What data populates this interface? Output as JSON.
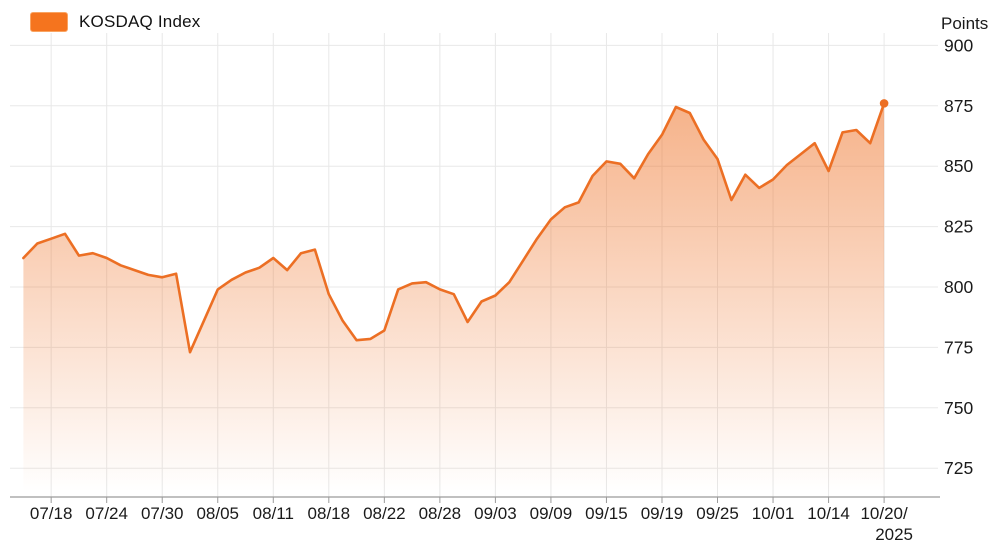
{
  "legend": {
    "label": "KOSDAQ Index",
    "swatch_color": "#F5741E",
    "swatch_border": "#F9A462"
  },
  "y_axis": {
    "title": "Points",
    "ticks": [
      900,
      875,
      850,
      825,
      800,
      775,
      750,
      725
    ]
  },
  "x_axis": {
    "tick_labels": [
      "07/18",
      "07/24",
      "07/30",
      "08/05",
      "08/11",
      "08/18",
      "08/22",
      "08/28",
      "09/03",
      "09/09",
      "09/15",
      "09/19",
      "09/25",
      "10/01",
      "10/14",
      "10/20/"
    ],
    "last_label_second_line": "2025",
    "tick_indices": [
      2,
      6,
      10,
      14,
      18,
      22,
      26,
      30,
      34,
      38,
      42,
      46,
      50,
      54,
      58,
      62
    ]
  },
  "chart_data": {
    "type": "area",
    "title": "KOSDAQ Index",
    "ylabel": "Points",
    "ylim": [
      715,
      905
    ],
    "grid": true,
    "legend_position": "top-left",
    "last_point_marker": true,
    "line_color": "#EC6F24",
    "fill_gradient_top": "rgba(238,112,36,0.55)",
    "fill_gradient_bottom": "rgba(238,112,36,0)",
    "x": [
      "07/16",
      "07/17",
      "07/18",
      "07/21",
      "07/22",
      "07/23",
      "07/24",
      "07/25",
      "07/28",
      "07/29",
      "07/30",
      "07/31",
      "08/01",
      "08/04",
      "08/05",
      "08/06",
      "08/07",
      "08/08",
      "08/11",
      "08/12",
      "08/13",
      "08/14",
      "08/18",
      "08/19",
      "08/20",
      "08/21",
      "08/22",
      "08/25",
      "08/26",
      "08/27",
      "08/28",
      "08/29",
      "09/01",
      "09/02",
      "09/03",
      "09/04",
      "09/05",
      "09/08",
      "09/09",
      "09/10",
      "09/11",
      "09/12",
      "09/15",
      "09/16",
      "09/17",
      "09/18",
      "09/19",
      "09/22",
      "09/23",
      "09/24",
      "09/25",
      "09/26",
      "09/29",
      "09/30",
      "10/01",
      "10/02",
      "10/10",
      "10/13",
      "10/14",
      "10/15",
      "10/16",
      "10/17",
      "10/20"
    ],
    "values": [
      812,
      818,
      820,
      822,
      813,
      814,
      812,
      809,
      807,
      805,
      804,
      805.5,
      773,
      786,
      799,
      803,
      806,
      808,
      812,
      807,
      814,
      815.5,
      797,
      786,
      778,
      778.5,
      782,
      799,
      801.5,
      802,
      799,
      797,
      785.5,
      794,
      796.5,
      802,
      811,
      820,
      828,
      833,
      835,
      846,
      852,
      851,
      845,
      855,
      863,
      874.5,
      872,
      861,
      853,
      836,
      846.5,
      841,
      844.5,
      850.5,
      855,
      859.5,
      848,
      864,
      865,
      859.5,
      876
    ]
  },
  "colors": {
    "grid": "#e8e8e8",
    "axis": "#9a9a9a",
    "tick": "#9a9a9a",
    "text": "#1a1a1a"
  }
}
